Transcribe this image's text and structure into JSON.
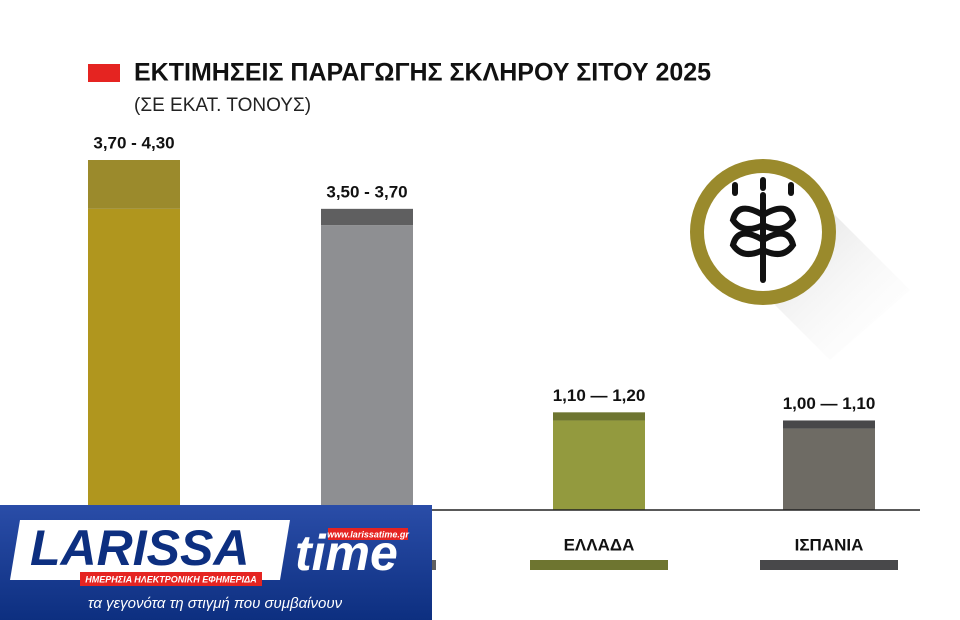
{
  "chart_data": {
    "type": "range-bar",
    "title": "ΕΚΤΙΜΗΣΕΙΣ ΠΑΡΑΓΩΓΗΣ ΣΚΛΗΡΟΥ ΣΙΤΟΥ 2025",
    "subtitle": "(ΣΕ ΕΚΑΤ. ΤΟΝΟΥΣ)",
    "categories": [
      null,
      null,
      "ΕΛΛΑΔΑ",
      "ΙΣΠΑΝΙΑ"
    ],
    "ranges": [
      [
        3.7,
        4.3
      ],
      [
        3.5,
        3.7
      ],
      [
        1.1,
        1.2
      ],
      [
        1.0,
        1.1
      ]
    ],
    "value_labels": [
      "3,70 - 4,30",
      "3,50 - 3,70",
      "1,10 — 1,20",
      "1,00 — 1,10"
    ],
    "colors": [
      "#b0961e",
      "#8e8f92",
      "#939a3e",
      "#6e6b64"
    ],
    "range_colors": [
      "#9b8a2c",
      "#5f5f60",
      "#6e7530",
      "#48484a"
    ]
  },
  "logo": {
    "name": "LARISSA",
    "name2": "time",
    "url": "www.larissatime.gr",
    "tagline": "ΗΜΕΡΗΣΙΑ ΗΛΕΚΤΡΟΝΙΚΗ ΕΦΗΜΕΡΙΔΑ",
    "slogan": "τα γεγονότα τη στιγμή που συμβαίνουν"
  }
}
